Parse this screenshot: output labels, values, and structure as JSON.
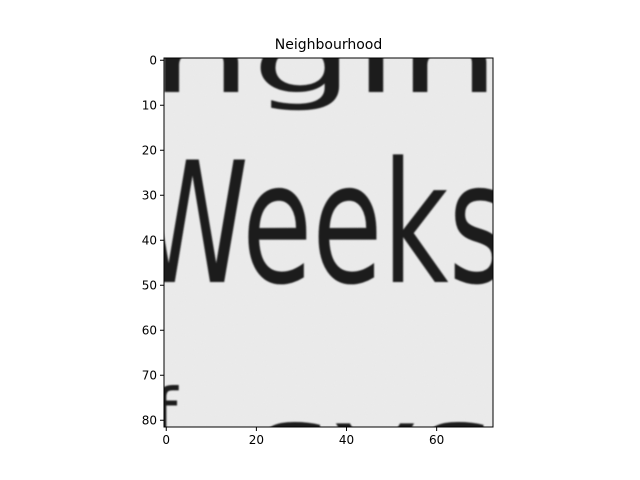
{
  "figure": {
    "title": "Neighbourhood",
    "image": {
      "description_words": [
        "ng in",
        "Weeks",
        "sys"
      ],
      "upper_fragment": "ngin",
      "middle_word": "Weeks",
      "lower_fragment": "sys",
      "left_fragment": "f",
      "paper_color": "#ececec",
      "ink_color": "#1a1a1a"
    }
  },
  "chart_data": {
    "type": "heatmap",
    "title": "Neighbourhood",
    "x_range": [
      -0.5,
      72.5
    ],
    "y_range": [
      81.5,
      -0.5
    ],
    "x_ticks": [
      0,
      20,
      40,
      60
    ],
    "y_ticks": [
      0,
      10,
      20,
      30,
      40,
      50,
      60,
      70,
      80
    ],
    "colormap": "gray"
  }
}
